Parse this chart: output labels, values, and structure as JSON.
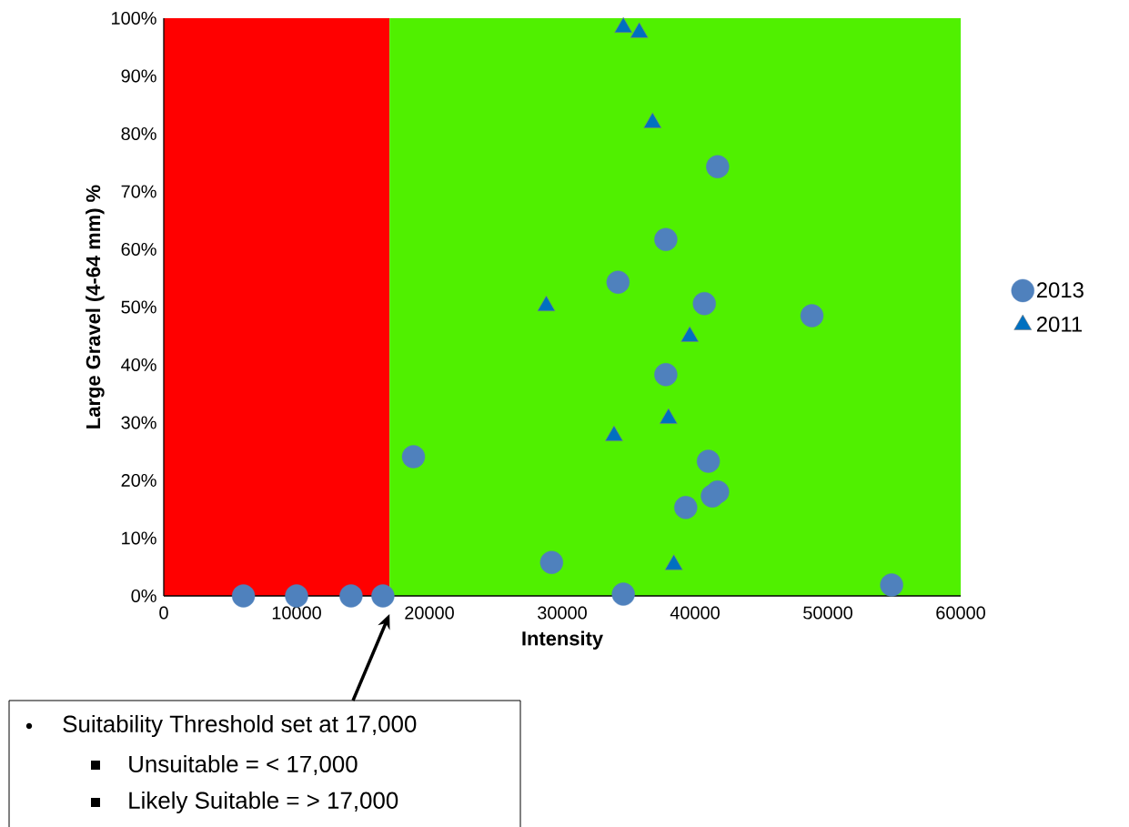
{
  "chart_data": {
    "type": "scatter",
    "xlabel": "Intensity",
    "ylabel": "Large Gravel (4-64 mm) %",
    "xlim": [
      0,
      60000
    ],
    "xticks": [
      0,
      10000,
      20000,
      30000,
      40000,
      50000,
      60000
    ],
    "ylim": [
      0,
      100
    ],
    "yticks": [
      {
        "value": 0,
        "label": "0%"
      },
      {
        "value": 10,
        "label": "10%"
      },
      {
        "value": 20,
        "label": "20%"
      },
      {
        "value": 30,
        "label": "30%"
      },
      {
        "value": 40,
        "label": "40%"
      },
      {
        "value": 50,
        "label": "50%"
      },
      {
        "value": 60,
        "label": "60%"
      },
      {
        "value": 70,
        "label": "70%"
      },
      {
        "value": 80,
        "label": "80%"
      },
      {
        "value": 90,
        "label": "90%"
      },
      {
        "value": 100,
        "label": "100%"
      }
    ],
    "legend": "right",
    "grid": false,
    "bands": [
      {
        "axis": "x",
        "from": 0,
        "to": 17000,
        "color": "#ff0000"
      },
      {
        "axis": "x",
        "from": 17000,
        "to": 60000,
        "color": "#50f000"
      }
    ],
    "series": [
      {
        "name": "2013",
        "color": "#4f81bd",
        "marker": "circle",
        "x": [
          6000,
          10000,
          14100,
          16500,
          18800,
          29200,
          34600,
          54800,
          37800,
          34200,
          40700,
          48800,
          37800,
          41000,
          41700,
          41300,
          39300,
          41700
        ],
        "values": [
          0,
          0,
          0,
          0,
          24.1,
          5.8,
          0.3,
          1.9,
          61.7,
          54.3,
          50.6,
          48.5,
          38.3,
          23.3,
          18,
          17.3,
          15.3,
          74.3
        ]
      },
      {
        "name": "2011",
        "color": "#0070c0",
        "marker": "triangle",
        "x": [
          34600,
          35800,
          36800,
          28800,
          39600,
          38000,
          33900,
          38400
        ],
        "values": [
          98.4,
          97.5,
          81.9,
          50.2,
          44.9,
          30.7,
          27.7,
          5.4
        ]
      }
    ],
    "annotations": [
      "Suitability Threshold set at 17,000",
      "Unsuitable = < 17,000",
      "Likely Suitable = > 17,000"
    ]
  }
}
